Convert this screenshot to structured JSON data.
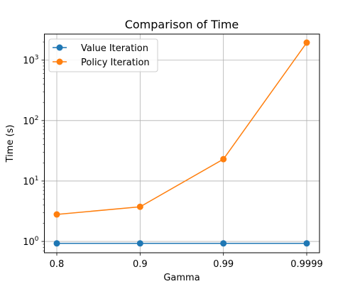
{
  "chart_data": {
    "type": "line",
    "title": "Comparison of Time",
    "xlabel": "Gamma",
    "ylabel": "Time (s)",
    "yscale": "log",
    "ylim": [
      0.65,
      2700
    ],
    "categories": [
      "0.8",
      "0.9",
      "0.99",
      "0.9999"
    ],
    "y_tick_base": "10",
    "y_tick_exponents": [
      "0",
      "1",
      "2",
      "3"
    ],
    "grid": true,
    "legend": "upper-left",
    "series": [
      {
        "name": "Value Iteration",
        "color": "#1f77b4",
        "marker": "circle",
        "values": [
          0.93,
          0.93,
          0.93,
          0.93
        ]
      },
      {
        "name": "Policy Iteration",
        "color": "#ff7f0e",
        "marker": "circle",
        "values": [
          2.8,
          3.75,
          23,
          1950
        ]
      }
    ]
  }
}
